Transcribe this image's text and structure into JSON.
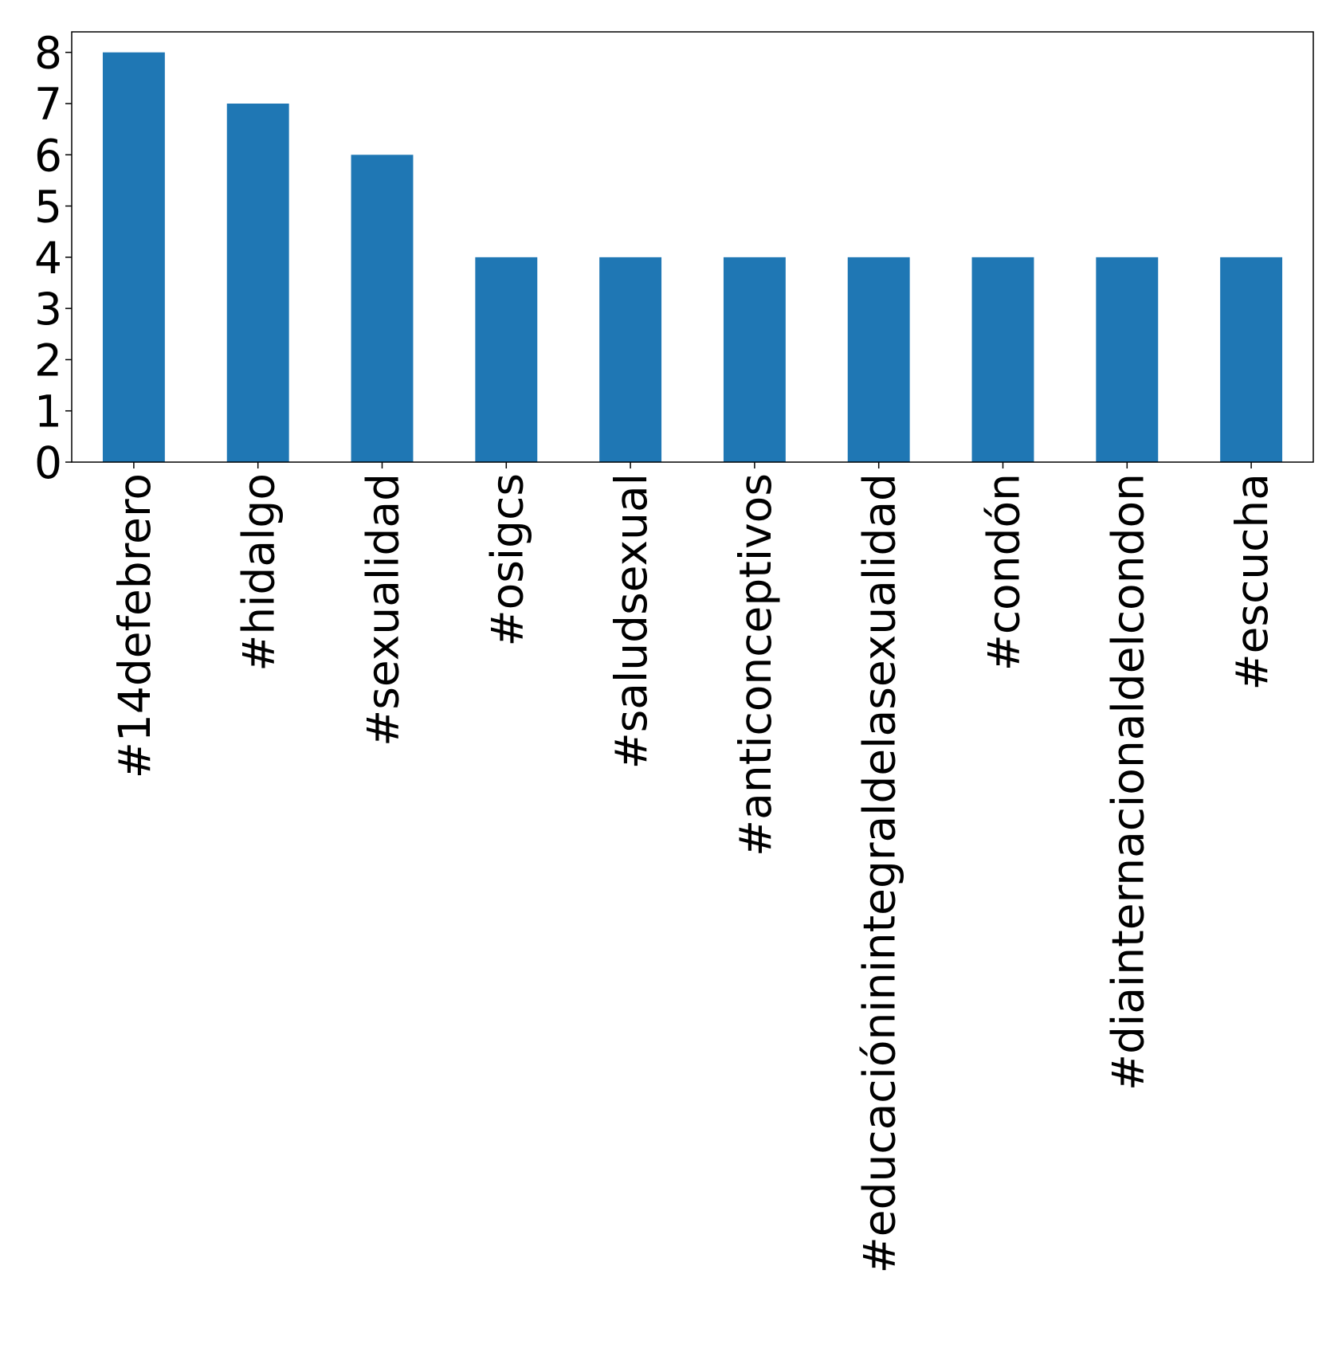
{
  "chart_data": {
    "type": "bar",
    "categories": [
      "#14defebrero",
      "#hidalgo",
      "#sexualidad",
      "#osigcs",
      "#saludsexual",
      "#anticonceptivos",
      "#educacióninintegraldelasexualidad",
      "#condón",
      "#diainternacionaldelcondon",
      "#escucha"
    ],
    "values": [
      8,
      7,
      6,
      4,
      4,
      4,
      4,
      4,
      4,
      4
    ],
    "color": "#1f77b4",
    "ylim": [
      0,
      8.4
    ],
    "yticks": [
      0,
      1,
      2,
      3,
      4,
      5,
      6,
      7,
      8
    ],
    "grid": false
  }
}
